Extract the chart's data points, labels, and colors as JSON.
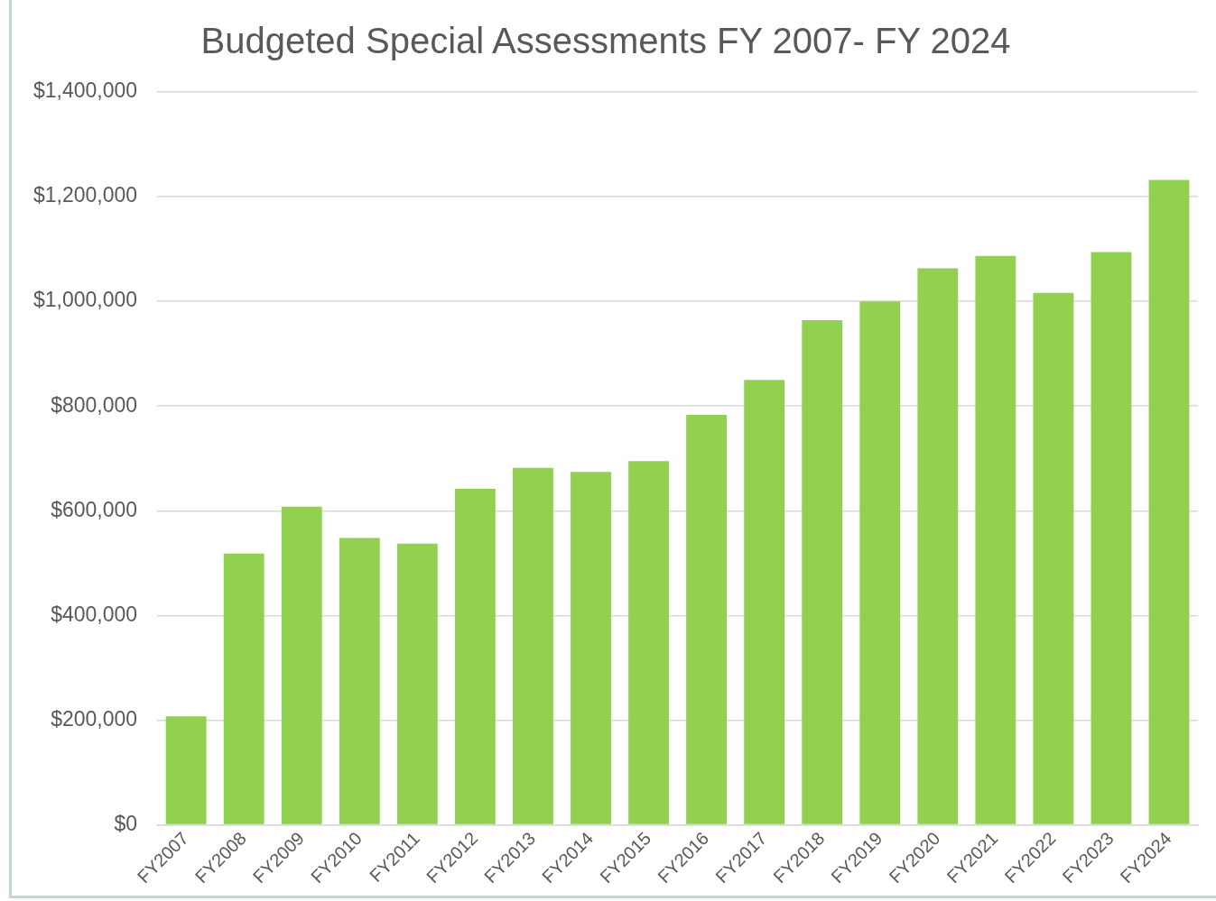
{
  "chart_data": {
    "type": "bar",
    "title": "Budgeted Special Assessments FY 2007- FY 2024",
    "categories": [
      "FY2007",
      "FY2008",
      "FY2009",
      "FY2010",
      "FY2011",
      "FY2012",
      "FY2013",
      "FY2014",
      "FY2015",
      "FY2016",
      "FY2017",
      "FY2018",
      "FY2019",
      "FY2020",
      "FY2021",
      "FY2022",
      "FY2023",
      "FY2024"
    ],
    "values": [
      207000,
      518000,
      608000,
      548000,
      537000,
      642000,
      682000,
      674000,
      695000,
      783000,
      850000,
      964000,
      1000000,
      1063000,
      1087000,
      1016000,
      1094000,
      1232000
    ],
    "color": "#92d050",
    "ylim": [
      0,
      1400000
    ],
    "yticks": [
      {
        "value": 0,
        "label": "$0"
      },
      {
        "value": 200000,
        "label": "$200,000"
      },
      {
        "value": 400000,
        "label": "$400,000"
      },
      {
        "value": 600000,
        "label": "$600,000"
      },
      {
        "value": 800000,
        "label": "$800,000"
      },
      {
        "value": 1000000,
        "label": "$1,000,000"
      },
      {
        "value": 1200000,
        "label": "$1,200,000"
      },
      {
        "value": 1400000,
        "label": "$1,400,000"
      }
    ],
    "grid": "y"
  }
}
